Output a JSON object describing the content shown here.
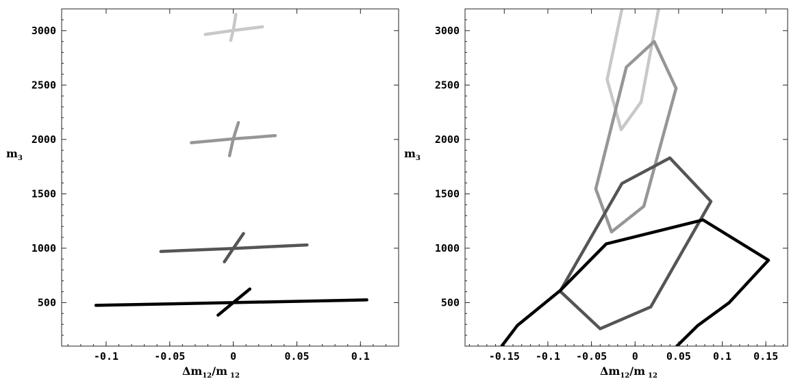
{
  "chart_data": [
    {
      "type": "line",
      "panel": "left",
      "xlabel": {
        "main": "Δm",
        "sub1": "12",
        "mid": "/m",
        "sub2": "12"
      },
      "ylabel": {
        "main": "m",
        "sub": "3"
      },
      "xlim": [
        -0.135,
        0.13
      ],
      "ylim": [
        100,
        3200
      ],
      "xticks": [
        -0.1,
        -0.05,
        0,
        0.05,
        0.1
      ],
      "xtick_labels": [
        "-0.1",
        "-0.05",
        "0",
        "0.05",
        "0.1"
      ],
      "yticks": [
        500,
        1000,
        1500,
        2000,
        2500,
        3000
      ],
      "ytick_labels": [
        "500",
        "1000",
        "1500",
        "2000",
        "2500",
        "3000"
      ],
      "series": [
        {
          "color": "#c8c8c8",
          "segments": [
            [
              [
                -0.022,
                2965
              ],
              [
                0.0,
                3002
              ],
              [
                0.023,
                3035
              ]
            ],
            [
              [
                -0.002,
                2910
              ],
              [
                0.0,
                3002
              ],
              [
                0.002,
                3150
              ]
            ]
          ]
        },
        {
          "color": "#969696",
          "segments": [
            [
              [
                -0.033,
                1970
              ],
              [
                0.0,
                2005
              ],
              [
                0.033,
                2035
              ]
            ],
            [
              [
                -0.003,
                1850
              ],
              [
                0.0,
                2005
              ],
              [
                0.004,
                2155
              ]
            ]
          ]
        },
        {
          "color": "#555555",
          "segments": [
            [
              [
                -0.057,
                970
              ],
              [
                0.0,
                998
              ],
              [
                0.058,
                1030
              ]
            ],
            [
              [
                -0.007,
                875
              ],
              [
                0.0,
                998
              ],
              [
                0.008,
                1135
              ]
            ]
          ]
        },
        {
          "color": "#000000",
          "segments": [
            [
              [
                -0.108,
                475
              ],
              [
                0.0,
                500
              ],
              [
                0.105,
                525
              ]
            ],
            [
              [
                -0.012,
                385
              ],
              [
                0.0,
                500
              ],
              [
                0.013,
                625
              ]
            ]
          ]
        }
      ]
    },
    {
      "type": "line",
      "panel": "right",
      "xlabel": {
        "main": "Δm",
        "sub1": "12",
        "mid": "/m",
        "sub2": "12"
      },
      "ylabel": {
        "main": "m",
        "sub": "3"
      },
      "xlim": [
        -0.195,
        0.175
      ],
      "ylim": [
        100,
        3200
      ],
      "xticks": [
        -0.15,
        -0.1,
        -0.05,
        0,
        0.05,
        0.1,
        0.15
      ],
      "xtick_labels": [
        "-0.15",
        "-0.1",
        "-0.05",
        "0",
        "0.05",
        "0.1",
        "0.15"
      ],
      "yticks": [
        500,
        1000,
        1500,
        2000,
        2500,
        3000
      ],
      "ytick_labels": [
        "500",
        "1000",
        "1500",
        "2000",
        "2500",
        "3000"
      ],
      "series": [
        {
          "color": "#c8c8c8",
          "segments": [
            [
              [
                -0.015,
                3200
              ],
              [
                -0.032,
                2550
              ],
              [
                -0.016,
                2090
              ],
              [
                0.007,
                2345
              ],
              [
                0.027,
                3200
              ]
            ]
          ]
        },
        {
          "color": "#969696",
          "segments": [
            [
              [
                0.022,
                2900
              ],
              [
                -0.01,
                2665
              ],
              [
                -0.045,
                1545
              ],
              [
                -0.027,
                1150
              ],
              [
                0.01,
                1385
              ],
              [
                0.047,
                2470
              ],
              [
                0.022,
                2900
              ]
            ]
          ]
        },
        {
          "color": "#555555",
          "segments": [
            [
              [
                0.04,
                1830
              ],
              [
                -0.015,
                1595
              ],
              [
                -0.086,
                605
              ],
              [
                -0.04,
                260
              ],
              [
                0.018,
                460
              ],
              [
                0.087,
                1430
              ],
              [
                0.04,
                1830
              ]
            ]
          ]
        },
        {
          "color": "#000000",
          "segments": [
            [
              [
                -0.153,
                100
              ],
              [
                -0.135,
                290
              ],
              [
                -0.086,
                610
              ],
              [
                -0.033,
                1040
              ],
              [
                0.078,
                1260
              ],
              [
                0.153,
                890
              ],
              [
                0.108,
                500
              ],
              [
                0.072,
                290
              ],
              [
                0.048,
                100
              ]
            ]
          ]
        }
      ]
    }
  ]
}
